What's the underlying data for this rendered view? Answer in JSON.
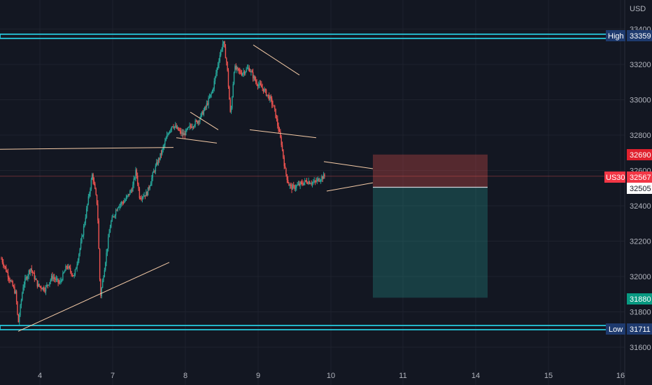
{
  "currency": "USD",
  "symbol": "US30",
  "colors": {
    "background": "#131722",
    "grid": "#1e222d",
    "up": "#26a69a",
    "down": "#ef5350",
    "hline": "#26c6da",
    "trendline": "#f5cba7",
    "stop_zone": "rgba(239,83,80,0.30)",
    "target_zone": "rgba(38,166,154,0.28)",
    "price_tag": "#f23645",
    "stop_tag": "#e0212e",
    "target_tag": "#089981",
    "level_tag": "#1e3a6e"
  },
  "chart_data": {
    "type": "candlestick",
    "y_axis": {
      "ticks": [
        31600,
        31800,
        32000,
        32200,
        32400,
        32600,
        32800,
        33000,
        33200,
        33400
      ],
      "range": [
        31500,
        33530
      ],
      "side": "right"
    },
    "x_axis": {
      "ticks": [
        "4",
        "7",
        "8",
        "9",
        "10",
        "11",
        "14",
        "15",
        "16"
      ]
    },
    "grid": true,
    "price_labels": {
      "high_label": "High",
      "high_value": "33359",
      "low_label": "Low",
      "low_value": "31711",
      "stop_value": "32690",
      "symbol_tag": "US30",
      "current_value": "32567",
      "entry_value": "32505",
      "target_value": "31880"
    },
    "levels": {
      "high": 33359,
      "low": 31711,
      "stop": 32690,
      "current": 32567,
      "entry": 32505,
      "target": 31880
    },
    "anchors": [
      {
        "x": 0.0,
        "y": 32100
      },
      {
        "x": 0.1,
        "y": 32000
      },
      {
        "x": 0.2,
        "y": 31900
      },
      {
        "x": 0.23,
        "y": 31730
      },
      {
        "x": 0.3,
        "y": 31950
      },
      {
        "x": 0.4,
        "y": 32050
      },
      {
        "x": 0.5,
        "y": 31950
      },
      {
        "x": 0.6,
        "y": 31930
      },
      {
        "x": 0.7,
        "y": 32000
      },
      {
        "x": 0.8,
        "y": 31960
      },
      {
        "x": 0.9,
        "y": 32060
      },
      {
        "x": 1.0,
        "y": 32000
      },
      {
        "x": 1.1,
        "y": 32200
      },
      {
        "x": 1.2,
        "y": 32450
      },
      {
        "x": 1.25,
        "y": 32580
      },
      {
        "x": 1.32,
        "y": 32400
      },
      {
        "x": 1.36,
        "y": 31880
      },
      {
        "x": 1.45,
        "y": 32150
      },
      {
        "x": 1.5,
        "y": 32300
      },
      {
        "x": 1.6,
        "y": 32400
      },
      {
        "x": 1.7,
        "y": 32430
      },
      {
        "x": 1.8,
        "y": 32500
      },
      {
        "x": 1.85,
        "y": 32600
      },
      {
        "x": 1.9,
        "y": 32450
      },
      {
        "x": 2.0,
        "y": 32470
      },
      {
        "x": 2.1,
        "y": 32600
      },
      {
        "x": 2.2,
        "y": 32700
      },
      {
        "x": 2.3,
        "y": 32820
      },
      {
        "x": 2.35,
        "y": 32860
      },
      {
        "x": 2.5,
        "y": 32800
      },
      {
        "x": 2.6,
        "y": 32850
      },
      {
        "x": 2.7,
        "y": 32880
      },
      {
        "x": 2.8,
        "y": 32950
      },
      {
        "x": 2.9,
        "y": 33050
      },
      {
        "x": 3.0,
        "y": 33250
      },
      {
        "x": 3.05,
        "y": 33330
      },
      {
        "x": 3.1,
        "y": 33200
      },
      {
        "x": 3.15,
        "y": 32900
      },
      {
        "x": 3.2,
        "y": 33180
      },
      {
        "x": 3.3,
        "y": 33150
      },
      {
        "x": 3.4,
        "y": 33180
      },
      {
        "x": 3.5,
        "y": 33100
      },
      {
        "x": 3.6,
        "y": 33060
      },
      {
        "x": 3.7,
        "y": 33000
      },
      {
        "x": 3.75,
        "y": 32950
      },
      {
        "x": 3.8,
        "y": 32850
      },
      {
        "x": 3.85,
        "y": 32750
      },
      {
        "x": 3.9,
        "y": 32600
      },
      {
        "x": 3.95,
        "y": 32520
      },
      {
        "x": 4.0,
        "y": 32500
      },
      {
        "x": 4.1,
        "y": 32520
      },
      {
        "x": 4.2,
        "y": 32540
      },
      {
        "x": 4.3,
        "y": 32530
      },
      {
        "x": 4.4,
        "y": 32560
      },
      {
        "x": 4.45,
        "y": 32567
      }
    ]
  }
}
